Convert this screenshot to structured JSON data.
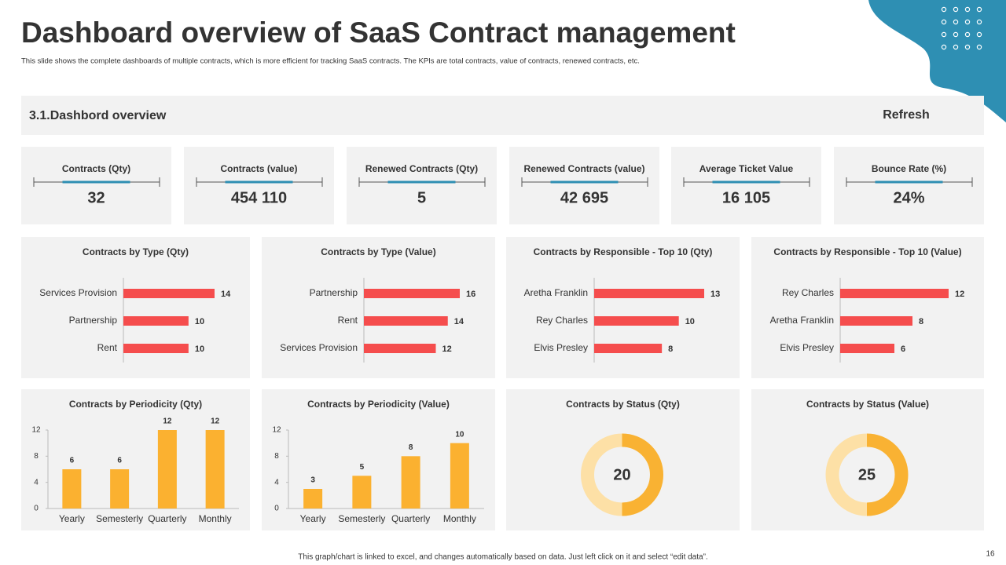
{
  "header": {
    "title": "Dashboard overview of SaaS Contract management",
    "subtitle": "This slide shows the complete dashboards of multiple contracts, which is more efficient for tracking SaaS contracts. The KPIs are total contracts, value of contracts, renewed contracts, etc."
  },
  "section": {
    "title": "3.1.Dashbord overview",
    "action": "Refresh"
  },
  "kpis": [
    {
      "label": "Contracts (Qty)",
      "value": "32"
    },
    {
      "label": "Contracts (value)",
      "value": "454 110"
    },
    {
      "label": "Renewed Contracts (Qty)",
      "value": "5"
    },
    {
      "label": "Renewed Contracts (value)",
      "value": "42 695"
    },
    {
      "label": "Average Ticket Value",
      "value": "16 105"
    },
    {
      "label": "Bounce Rate (%)",
      "value": "24%"
    }
  ],
  "chart_data": [
    {
      "type": "hbar",
      "title": "Contracts by Type (Qty)",
      "categories": [
        "Services Provision",
        "Partnership",
        "Rent"
      ],
      "values": [
        14,
        10,
        10
      ],
      "color": "#f54d4d"
    },
    {
      "type": "hbar",
      "title": "Contracts by Type (Value)",
      "categories": [
        "Partnership",
        "Rent",
        "Services Provision"
      ],
      "values": [
        16,
        14,
        12
      ],
      "color": "#f54d4d"
    },
    {
      "type": "hbar",
      "title": "Contracts by Responsible - Top 10 (Qty)",
      "categories": [
        "Aretha Franklin",
        "Rey Charles",
        "Elvis Presley"
      ],
      "values": [
        13,
        10,
        8
      ],
      "color": "#f54d4d"
    },
    {
      "type": "hbar",
      "title": "Contracts by Responsible - Top 10 (Value)",
      "categories": [
        "Rey Charles",
        "Aretha Franklin",
        "Elvis Presley"
      ],
      "values": [
        12,
        8,
        6
      ],
      "color": "#f54d4d"
    },
    {
      "type": "bar",
      "title": "Contracts by Periodicity (Qty)",
      "categories": [
        "Yearly",
        "Semesterly",
        "Quarterly",
        "Monthly"
      ],
      "values": [
        6,
        6,
        12,
        12
      ],
      "color": "#fbb130",
      "ylim": [
        0,
        12
      ],
      "yticks": [
        0,
        4,
        8,
        12
      ]
    },
    {
      "type": "bar",
      "title": "Contracts by Periodicity (Value)",
      "categories": [
        "Yearly",
        "Semesterly",
        "Quarterly",
        "Monthly"
      ],
      "values": [
        3,
        5,
        8,
        10
      ],
      "color": "#fbb130",
      "ylim": [
        0,
        12
      ],
      "yticks": [
        0,
        4,
        8,
        12
      ]
    },
    {
      "type": "donut",
      "title": "Contracts by Status (Qty)",
      "values": [
        20
      ],
      "color": "#f9b233"
    },
    {
      "type": "donut",
      "title": "Contracts by Status (Value)",
      "values": [
        25
      ],
      "color": "#f9b233"
    }
  ],
  "footer": {
    "note": "This graph/chart is linked to excel, and changes automatically based on data. Just left click on it and select “edit data”.",
    "page": "16"
  }
}
